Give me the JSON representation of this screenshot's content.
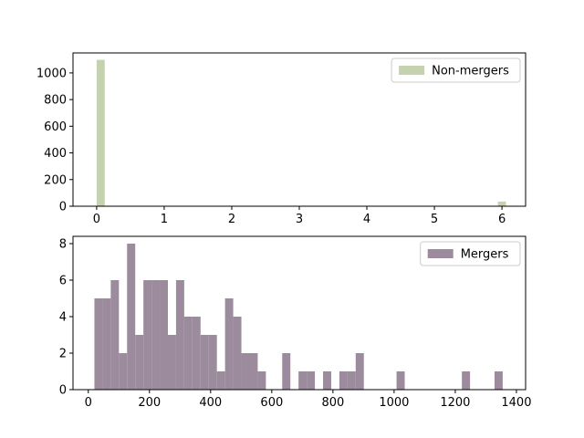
{
  "chart_data": [
    {
      "type": "bar",
      "panel": "top",
      "xlim": [
        -0.35,
        6.35
      ],
      "ylim": [
        0,
        1150
      ],
      "xticks": [
        0,
        1,
        2,
        3,
        4,
        5,
        6
      ],
      "yticks": [
        0,
        200,
        400,
        600,
        800,
        1000
      ],
      "bin_width": 0.12,
      "color": "#c5d2b0",
      "legend": {
        "position": "top-right",
        "label": "Non-mergers"
      },
      "bins": [
        {
          "x": 0.0,
          "value": 1098
        },
        {
          "x": 1.0,
          "value": 3
        },
        {
          "x": 2.0,
          "value": 3
        },
        {
          "x": 3.0,
          "value": 3
        },
        {
          "x": 4.0,
          "value": 3
        },
        {
          "x": 5.0,
          "value": 3
        },
        {
          "x": 5.94,
          "value": 35
        }
      ]
    },
    {
      "type": "bar",
      "panel": "bottom",
      "xlim": [
        -50,
        1430
      ],
      "ylim": [
        0,
        8.4
      ],
      "xticks": [
        0,
        200,
        400,
        600,
        800,
        1000,
        1200,
        1400
      ],
      "yticks": [
        0,
        2,
        4,
        6,
        8
      ],
      "bin_width": 26.7,
      "color": "#9b8b9c",
      "legend": {
        "position": "top-right",
        "label": "Mergers"
      },
      "bins": [
        {
          "x": 20,
          "value": 5
        },
        {
          "x": 46.7,
          "value": 5
        },
        {
          "x": 73.4,
          "value": 6
        },
        {
          "x": 100.1,
          "value": 2
        },
        {
          "x": 126.8,
          "value": 8
        },
        {
          "x": 153.5,
          "value": 3
        },
        {
          "x": 180.2,
          "value": 6
        },
        {
          "x": 206.9,
          "value": 6
        },
        {
          "x": 233.6,
          "value": 6
        },
        {
          "x": 260.3,
          "value": 3
        },
        {
          "x": 287,
          "value": 6
        },
        {
          "x": 313.7,
          "value": 4
        },
        {
          "x": 340.4,
          "value": 4
        },
        {
          "x": 367.1,
          "value": 3
        },
        {
          "x": 393.8,
          "value": 3
        },
        {
          "x": 420.5,
          "value": 1
        },
        {
          "x": 447.2,
          "value": 5
        },
        {
          "x": 473.9,
          "value": 4
        },
        {
          "x": 500.6,
          "value": 2
        },
        {
          "x": 527.3,
          "value": 2
        },
        {
          "x": 554,
          "value": 1
        },
        {
          "x": 634.1,
          "value": 2
        },
        {
          "x": 687.5,
          "value": 1
        },
        {
          "x": 714.2,
          "value": 1
        },
        {
          "x": 767.6,
          "value": 1
        },
        {
          "x": 821,
          "value": 1
        },
        {
          "x": 847.7,
          "value": 1
        },
        {
          "x": 874.4,
          "value": 2
        },
        {
          "x": 1008,
          "value": 1
        },
        {
          "x": 1221.6,
          "value": 1
        },
        {
          "x": 1328.4,
          "value": 1
        }
      ]
    }
  ]
}
